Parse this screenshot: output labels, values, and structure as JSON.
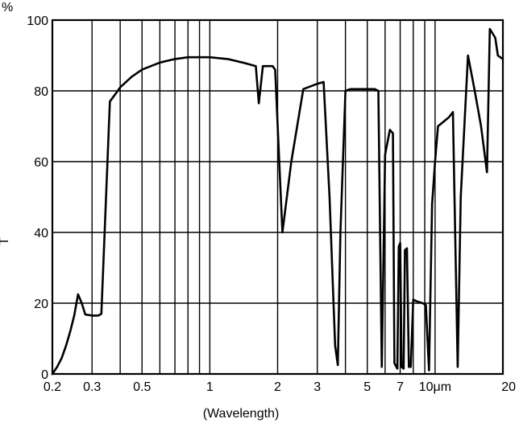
{
  "chart_data": {
    "type": "line",
    "title": "",
    "xlabel": "(Wavelength)",
    "ylabel": "T",
    "y_unit": "%",
    "x_scale": "log",
    "xlim": [
      0.2,
      20
    ],
    "ylim": [
      0,
      100
    ],
    "grid": true,
    "x_gridlines": [
      0.3,
      0.4,
      0.5,
      0.6,
      0.7,
      0.8,
      0.9,
      1,
      2,
      3,
      4,
      5,
      6,
      7,
      8,
      9,
      10
    ],
    "y_gridlines": [
      20,
      40,
      60,
      80
    ],
    "x_ticks": [
      {
        "value": 0.2,
        "label": "0.2"
      },
      {
        "value": 0.3,
        "label": "0.3"
      },
      {
        "value": 0.5,
        "label": "0.5"
      },
      {
        "value": 1,
        "label": "1"
      },
      {
        "value": 2,
        "label": "2"
      },
      {
        "value": 3,
        "label": "3"
      },
      {
        "value": 5,
        "label": "5"
      },
      {
        "value": 7,
        "label": "7"
      },
      {
        "value": 10,
        "label": "10μm"
      },
      {
        "value": 20,
        "label": "20"
      }
    ],
    "y_ticks": [
      {
        "value": 0,
        "label": "0"
      },
      {
        "value": 20,
        "label": "20"
      },
      {
        "value": 40,
        "label": "40"
      },
      {
        "value": 60,
        "label": "60"
      },
      {
        "value": 80,
        "label": "80"
      },
      {
        "value": 100,
        "label": "100"
      }
    ],
    "series": [
      {
        "color": "#000000",
        "points": [
          [
            0.2,
            0
          ],
          [
            0.21,
            2
          ],
          [
            0.22,
            4.5
          ],
          [
            0.23,
            8
          ],
          [
            0.24,
            12
          ],
          [
            0.25,
            16.5
          ],
          [
            0.26,
            22.5
          ],
          [
            0.27,
            20
          ],
          [
            0.28,
            16.8
          ],
          [
            0.3,
            16.5
          ],
          [
            0.32,
            16.5
          ],
          [
            0.33,
            17
          ],
          [
            0.36,
            77
          ],
          [
            0.38,
            79
          ],
          [
            0.4,
            81
          ],
          [
            0.45,
            84
          ],
          [
            0.5,
            86
          ],
          [
            0.6,
            88
          ],
          [
            0.7,
            89
          ],
          [
            0.8,
            89.5
          ],
          [
            1,
            89.5
          ],
          [
            1.2,
            89
          ],
          [
            1.4,
            88
          ],
          [
            1.6,
            87
          ],
          [
            1.65,
            76.5
          ],
          [
            1.72,
            87
          ],
          [
            1.9,
            87
          ],
          [
            1.95,
            86
          ],
          [
            2.1,
            40
          ],
          [
            2.3,
            60
          ],
          [
            2.6,
            80.5
          ],
          [
            3.0,
            82
          ],
          [
            3.2,
            82.5
          ],
          [
            3.4,
            50
          ],
          [
            3.6,
            8
          ],
          [
            3.7,
            2.5
          ],
          [
            3.8,
            40
          ],
          [
            4.0,
            80
          ],
          [
            4.2,
            80.5
          ],
          [
            5.0,
            80.5
          ],
          [
            5.4,
            80.5
          ],
          [
            5.6,
            80
          ],
          [
            5.8,
            2
          ],
          [
            6.0,
            62
          ],
          [
            6.3,
            69
          ],
          [
            6.5,
            68
          ],
          [
            6.6,
            3
          ],
          [
            6.8,
            1.5
          ],
          [
            6.9,
            36
          ],
          [
            7.0,
            37
          ],
          [
            7.1,
            2
          ],
          [
            7.25,
            1.5
          ],
          [
            7.35,
            35
          ],
          [
            7.5,
            35.5
          ],
          [
            7.65,
            2
          ],
          [
            7.8,
            2
          ],
          [
            8.0,
            21
          ],
          [
            8.3,
            20.5
          ],
          [
            8.8,
            20
          ],
          [
            9.1,
            19.5
          ],
          [
            9.4,
            1
          ],
          [
            9.7,
            48
          ],
          [
            10.0,
            60
          ],
          [
            10.3,
            70
          ],
          [
            11.5,
            72.5
          ],
          [
            12.0,
            74
          ],
          [
            12.6,
            2
          ],
          [
            13.0,
            50
          ],
          [
            14.0,
            90
          ],
          [
            15.0,
            80
          ],
          [
            16.0,
            70
          ],
          [
            17.0,
            57
          ],
          [
            17.5,
            97.5
          ],
          [
            18.5,
            95
          ],
          [
            19.0,
            90
          ],
          [
            20.0,
            89
          ]
        ]
      }
    ]
  }
}
